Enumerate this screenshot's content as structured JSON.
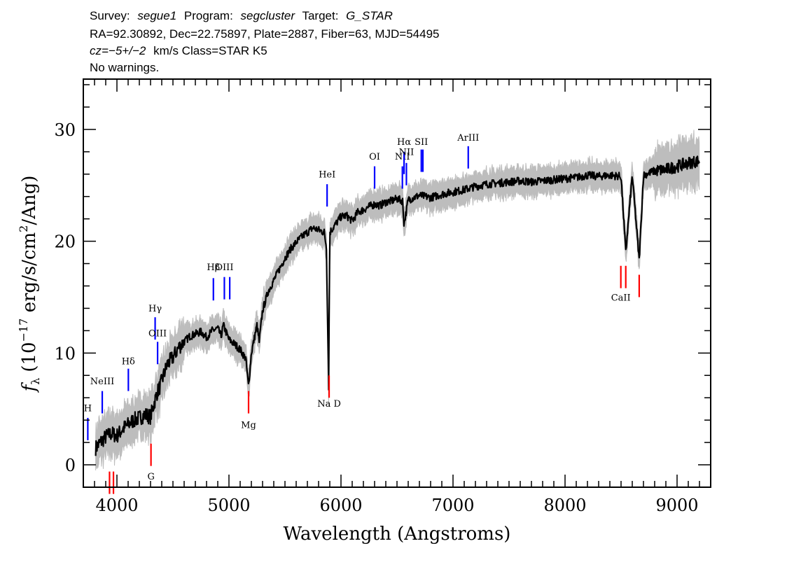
{
  "header": {
    "line1": {
      "survey_label": "Survey:",
      "survey": "segue1",
      "program_label": "Program:",
      "program": "segcluster",
      "target_label": "Target:",
      "target": "G_STAR"
    },
    "line2": "RA=92.30892, Dec=22.75897, Plate=2887, Fiber=63, MJD=54495",
    "line3": {
      "cz": "cz=−5+/−2",
      "rest": "km/s Class=STAR K5"
    },
    "line4": "No warnings."
  },
  "colors": {
    "spectrum": "#000000",
    "error": "#bdbdbd",
    "emission": "#0000ff",
    "absorption": "#ff0000"
  },
  "chart_data": {
    "type": "line",
    "xlabel": "Wavelength (Angstroms)",
    "ylabel": "f_λ (10^-17 erg/s/cm²/Ang)",
    "ylabel_parts": {
      "f": "f",
      "sub": "λ",
      "pre": "(10",
      "exp1": "−17",
      "mid": " erg/s/cm",
      "exp2": "2",
      "post": "/Ang)"
    },
    "xlim": [
      3700,
      9300
    ],
    "ylim": [
      -2,
      34.5
    ],
    "xticks": [
      4000,
      5000,
      6000,
      7000,
      8000,
      9000
    ],
    "yticks": [
      0,
      10,
      20,
      30
    ],
    "grid": false,
    "series": [
      {
        "role": "flux",
        "x": [
          3810,
          3850,
          3900,
          3950,
          4000,
          4050,
          4100,
          4150,
          4200,
          4250,
          4300,
          4340,
          4360,
          4380,
          4400,
          4450,
          4500,
          4550,
          4600,
          4650,
          4700,
          4750,
          4800,
          4850,
          4900,
          4930,
          4950,
          5000,
          5050,
          5100,
          5150,
          5175,
          5200,
          5250,
          5270,
          5300,
          5350,
          5400,
          5450,
          5500,
          5550,
          5600,
          5650,
          5700,
          5750,
          5800,
          5850,
          5870,
          5890,
          5900,
          5950,
          6000,
          6050,
          6100,
          6150,
          6200,
          6250,
          6300,
          6350,
          6400,
          6450,
          6500,
          6550,
          6563,
          6600,
          6650,
          6700,
          6750,
          6800,
          6900,
          7000,
          7100,
          7200,
          7300,
          7400,
          7500,
          7600,
          7700,
          7800,
          7900,
          8000,
          8100,
          8200,
          8300,
          8400,
          8500,
          8542,
          8600,
          8662,
          8700,
          8800,
          8900,
          9000,
          9100,
          9200
        ],
        "y": [
          1.5,
          2.0,
          2.5,
          2.8,
          2.6,
          3.2,
          3.6,
          4.0,
          4.2,
          4.5,
          4.3,
          5.8,
          6.5,
          6.9,
          7.5,
          9.0,
          9.6,
          10.5,
          11.0,
          11.5,
          11.7,
          11.9,
          11.4,
          12.0,
          12.2,
          11.5,
          12.5,
          11.2,
          10.8,
          10.3,
          9.5,
          7.0,
          10.0,
          12.5,
          11.0,
          13.8,
          15.5,
          16.5,
          17.5,
          18.5,
          19.3,
          19.9,
          20.4,
          20.8,
          21.2,
          21.0,
          20.8,
          19.5,
          7.0,
          20.8,
          21.5,
          22.2,
          22.3,
          21.8,
          22.6,
          22.8,
          23.1,
          23.3,
          23.2,
          23.5,
          23.6,
          23.8,
          23.6,
          21.5,
          23.7,
          23.9,
          24.1,
          24.0,
          23.9,
          24.2,
          24.4,
          24.6,
          24.9,
          25.1,
          25.2,
          25.3,
          25.4,
          25.3,
          25.4,
          25.5,
          25.6,
          25.7,
          25.9,
          25.8,
          25.9,
          25.8,
          19.0,
          25.9,
          18.3,
          25.9,
          26.3,
          26.4,
          26.7,
          27.0,
          27.2
        ]
      }
    ],
    "error_band": {
      "half_width": 1.2
    },
    "line_markers": [
      {
        "label": "H",
        "x": 3740,
        "kind": "emission",
        "y": [
          2.2,
          4.2
        ],
        "label_y": 4.8
      },
      {
        "label": "NeIII",
        "x": 3869,
        "kind": "emission",
        "y": [
          4.6,
          6.6
        ],
        "label_y": 7.2
      },
      {
        "label": "Hδ",
        "x": 4102,
        "kind": "emission",
        "y": [
          6.6,
          8.6
        ],
        "label_y": 9.0
      },
      {
        "label": "Hγ",
        "x": 4341,
        "kind": "emission",
        "y": [
          11.2,
          13.2
        ],
        "label_y": 13.7
      },
      {
        "label": "OIII",
        "x": 4363,
        "kind": "emission",
        "y": [
          9.0,
          11.0
        ],
        "label_y": 11.5
      },
      {
        "label": "Hβ",
        "x": 4861,
        "kind": "emission",
        "y": [
          14.7,
          16.7
        ],
        "label_y": 17.4
      },
      {
        "label": "OIII",
        "x": 4959,
        "kind": "emission",
        "y": [
          14.8,
          16.8
        ],
        "label_y": 17.4
      },
      {
        "label": "",
        "x": 5007,
        "kind": "emission",
        "y": [
          14.8,
          16.8
        ],
        "label_y": 17.4
      },
      {
        "label": "HeI",
        "x": 5876,
        "kind": "emission",
        "y": [
          23.1,
          25.1
        ],
        "label_y": 25.7
      },
      {
        "label": "OI",
        "x": 6300,
        "kind": "emission",
        "y": [
          24.7,
          26.7
        ],
        "label_y": 27.3
      },
      {
        "label": "NII",
        "x": 6548,
        "kind": "emission",
        "y": [
          24.7,
          26.7
        ],
        "label_y": 27.3
      },
      {
        "label": "Hα",
        "x": 6563,
        "kind": "emission",
        "y": [
          26.0,
          28.0
        ],
        "label_y": 28.6
      },
      {
        "label": "NII",
        "x": 6584,
        "kind": "emission",
        "y": [
          25.0,
          27.0
        ],
        "label_y": 27.7
      },
      {
        "label": "SII",
        "x": 6717,
        "kind": "emission",
        "y": [
          26.2,
          28.2
        ],
        "label_y": 28.6
      },
      {
        "label": "",
        "x": 6731,
        "kind": "emission",
        "y": [
          26.2,
          28.2
        ],
        "label_y": 28.6
      },
      {
        "label": "ArIII",
        "x": 7136,
        "kind": "emission",
        "y": [
          26.5,
          28.5
        ],
        "label_y": 29.0
      },
      {
        "label": "",
        "x": 3934,
        "kind": "absorption",
        "y": [
          -2.6,
          -0.6
        ],
        "label_y": -3.2
      },
      {
        "label": "",
        "x": 3969,
        "kind": "absorption",
        "y": [
          -2.6,
          -0.6
        ],
        "label_y": -3.2
      },
      {
        "label": "G",
        "x": 4304,
        "kind": "absorption",
        "y": [
          -0.1,
          1.9
        ],
        "label_y": -1.3
      },
      {
        "label": "Mg",
        "x": 5175,
        "kind": "absorption",
        "y": [
          4.6,
          6.6
        ],
        "label_y": 3.3
      },
      {
        "label": "Na D",
        "x": 5894,
        "kind": "absorption",
        "y": [
          6.0,
          8.0
        ],
        "label_y": 5.2
      },
      {
        "label": "CaII",
        "x": 8498,
        "kind": "absorption",
        "y": [
          15.8,
          17.8
        ],
        "label_y": 14.7
      },
      {
        "label": "",
        "x": 8542,
        "kind": "absorption",
        "y": [
          15.8,
          17.8
        ],
        "label_y": 14.7
      },
      {
        "label": "",
        "x": 8662,
        "kind": "absorption",
        "y": [
          15.0,
          17.0
        ],
        "label_y": 14.7
      }
    ]
  }
}
